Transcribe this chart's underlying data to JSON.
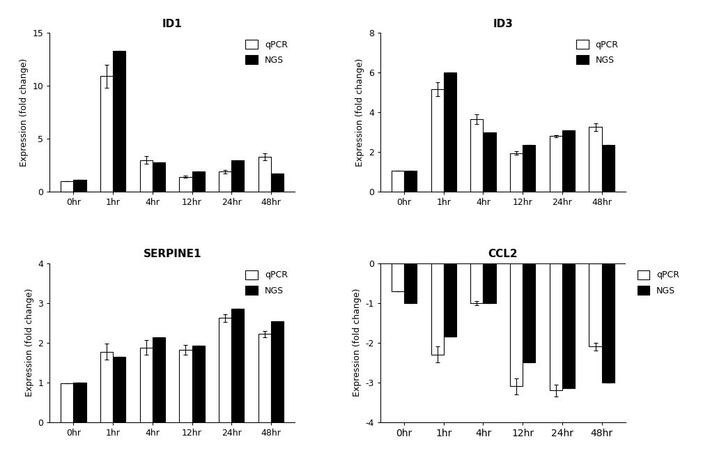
{
  "time_points": [
    "0hr",
    "1hr",
    "4hr",
    "12hr",
    "24hr",
    "48hr"
  ],
  "ID1": {
    "title": "ID1",
    "qpcr": [
      1.0,
      10.9,
      3.0,
      1.4,
      1.9,
      3.3
    ],
    "ngs": [
      1.1,
      13.3,
      2.8,
      1.9,
      3.0,
      1.7
    ],
    "qpcr_err": [
      0.0,
      1.1,
      0.35,
      0.1,
      0.15,
      0.3
    ],
    "ngs_err": [
      0.0,
      0.0,
      0.0,
      0.0,
      0.0,
      0.0
    ],
    "ylim": [
      0,
      15
    ],
    "yticks": [
      0,
      5,
      10,
      15
    ],
    "legend_outside": false
  },
  "ID3": {
    "title": "ID3",
    "qpcr": [
      1.05,
      5.15,
      3.65,
      1.95,
      2.8,
      3.25
    ],
    "ngs": [
      1.05,
      6.0,
      3.0,
      2.35,
      3.1,
      2.35
    ],
    "qpcr_err": [
      0.0,
      0.35,
      0.25,
      0.1,
      0.05,
      0.2
    ],
    "ngs_err": [
      0.0,
      0.0,
      0.0,
      0.0,
      0.0,
      0.0
    ],
    "ylim": [
      0,
      8
    ],
    "yticks": [
      0,
      2,
      4,
      6,
      8
    ],
    "legend_outside": false
  },
  "SERPINE1": {
    "title": "SERPINE1",
    "qpcr": [
      0.97,
      1.77,
      1.88,
      1.82,
      2.62,
      2.22
    ],
    "ngs": [
      1.0,
      1.65,
      2.13,
      1.92,
      2.85,
      2.53
    ],
    "qpcr_err": [
      0.0,
      0.2,
      0.18,
      0.12,
      0.1,
      0.08
    ],
    "ngs_err": [
      0.0,
      0.0,
      0.0,
      0.0,
      0.0,
      0.0
    ],
    "ylim": [
      0,
      4
    ],
    "yticks": [
      0,
      1,
      2,
      3,
      4
    ],
    "legend_outside": false
  },
  "CCL2": {
    "title": "CCL2",
    "qpcr": [
      -0.7,
      -2.3,
      -1.0,
      -3.1,
      -3.2,
      -2.1
    ],
    "ngs": [
      -1.0,
      -1.85,
      -1.0,
      -2.5,
      -3.15,
      -3.0
    ],
    "qpcr_err": [
      0.0,
      0.2,
      0.05,
      0.2,
      0.15,
      0.1
    ],
    "ngs_err": [
      0.0,
      0.0,
      0.0,
      0.0,
      0.0,
      0.0
    ],
    "ylim": [
      -4,
      0
    ],
    "yticks": [
      -4,
      -3,
      -2,
      -1,
      0
    ],
    "legend_outside": true
  },
  "bar_width": 0.32,
  "qpcr_color": "#ffffff",
  "ngs_color": "#000000",
  "edge_color": "#000000",
  "ylabel": "Expression (fold change)",
  "background_color": "#ffffff",
  "title_fontsize": 11,
  "label_fontsize": 9,
  "tick_fontsize": 9,
  "legend_fontsize": 9
}
